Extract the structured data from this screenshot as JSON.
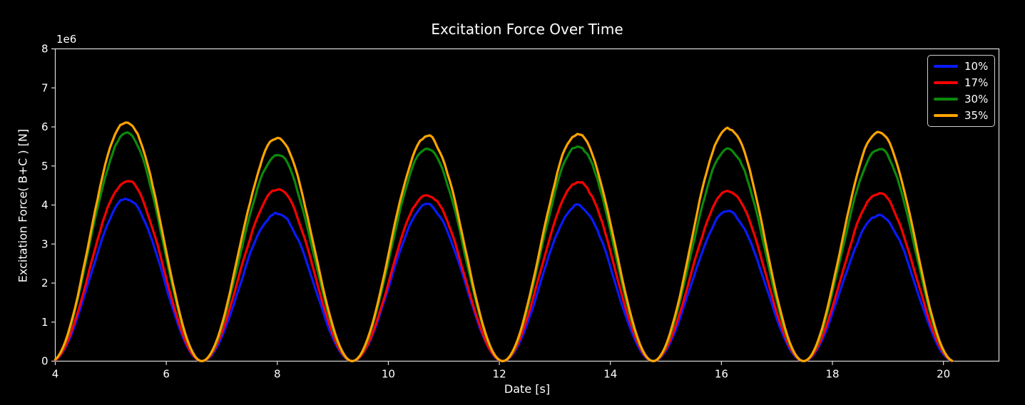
{
  "window": {
    "background_color": "#000000",
    "text_color": "#ffffff",
    "spine_color": "#dcdcdc"
  },
  "chart_data": {
    "type": "line",
    "title": "Excitation Force Over Time",
    "xlabel": "Date [s]",
    "ylabel": "Excitation Force( B+C ) [N]",
    "y_offset_label": "1e6",
    "xlim": [
      4,
      21
    ],
    "ylim_1e6": [
      0,
      8
    ],
    "xticks": [
      4,
      6,
      8,
      10,
      12,
      14,
      16,
      18,
      20
    ],
    "yticks_1e6": [
      0,
      1,
      2,
      3,
      4,
      5,
      6,
      7,
      8
    ],
    "grid": false,
    "legend_position": "upper right",
    "x_start_s": 4.0,
    "x_end_s": 20.19,
    "period_s": 2.71,
    "first_zero_s": 3.93,
    "peak_times_s": [
      5.29,
      8.0,
      10.71,
      13.42,
      16.13,
      18.84
    ],
    "envelope_model": "value = cycle_peak * sin^2(pi*(t-first_zero)/period), zero between cycles, plus small noise",
    "sample_step_s": 0.045,
    "noise_amp_1e6N": 0.11,
    "series": [
      {
        "name": "10%",
        "color": "#0a1aff",
        "seed": 11,
        "cycle_peaks_1e6N": [
          4.15,
          3.8,
          4.0,
          3.97,
          3.82,
          3.76
        ]
      },
      {
        "name": "17%",
        "color": "#ff0000",
        "seed": 23,
        "cycle_peaks_1e6N": [
          4.6,
          4.42,
          4.28,
          4.6,
          4.4,
          4.3
        ]
      },
      {
        "name": "30%",
        "color": "#0b8a0b",
        "seed": 37,
        "cycle_peaks_1e6N": [
          5.82,
          5.28,
          5.45,
          5.52,
          5.47,
          5.42
        ]
      },
      {
        "name": "35%",
        "color": "#ffa500",
        "seed": 49,
        "cycle_peaks_1e6N": [
          6.15,
          5.72,
          5.78,
          5.82,
          6.0,
          5.88
        ]
      }
    ]
  }
}
